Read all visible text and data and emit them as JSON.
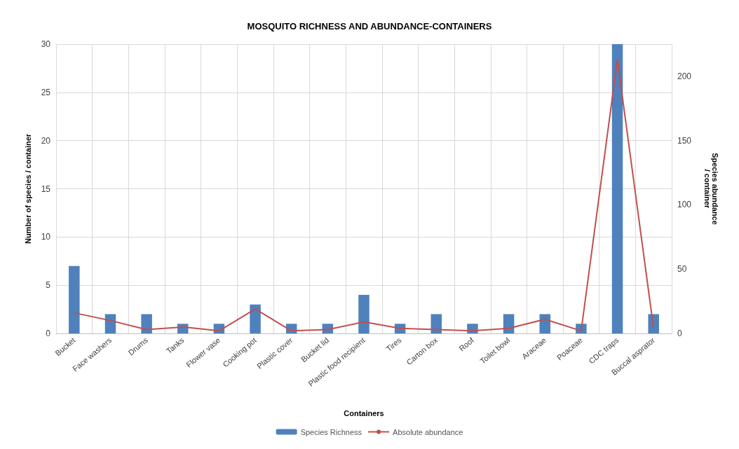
{
  "chart_data": {
    "type": "bar",
    "title": "MOSQUITO RICHNESS AND ABUNDANCE-CONTAINERS",
    "xlabel": "Containers",
    "ylabel": "Number of species / container",
    "y2label": "Species abundance\n/ container",
    "categories": [
      "Bucket",
      "Face washers",
      "Drums",
      "Tanks",
      "Flower vase",
      "Cooking pot",
      "Plastic cover",
      "Bucket lid",
      "Plastic food recipient",
      "Tires",
      "Carton box",
      "Roof",
      "Toilet bowl",
      "Araceae",
      "Poaceae",
      "CDC traps",
      "Buccal asprator"
    ],
    "series": [
      {
        "name": "Species Richness",
        "color": "#4f81bd",
        "values": [
          7,
          2,
          2,
          1,
          1,
          3,
          1,
          1,
          4,
          1,
          2,
          1,
          2,
          2,
          1,
          30,
          2
        ]
      },
      {
        "name": "Absolute abundance",
        "type": "line",
        "axis": "y2",
        "color": "#c0504d",
        "values": [
          16,
          10,
          3,
          5,
          2,
          19,
          2,
          3,
          9,
          4,
          3,
          2,
          4,
          11,
          2,
          213,
          4
        ]
      }
    ],
    "ylim": [
      0,
      30
    ],
    "yticks": [
      0,
      5,
      10,
      15,
      20,
      25,
      30
    ],
    "y2lim": [
      0,
      225
    ],
    "y2ticks": [
      0,
      50,
      100,
      150,
      200
    ],
    "grid": true,
    "legend": "bottom",
    "marker": "none",
    "line_style": "solid"
  }
}
